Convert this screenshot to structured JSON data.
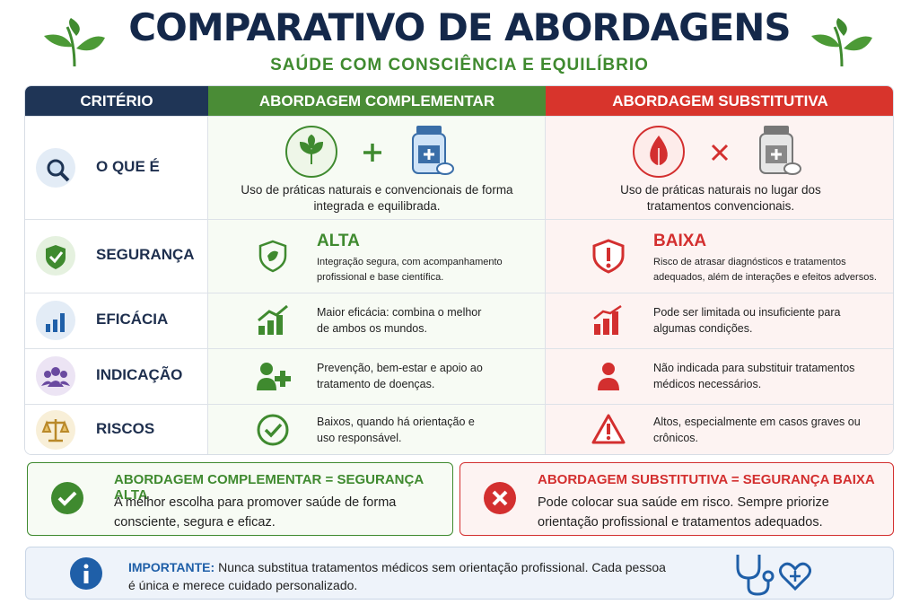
{
  "header": {
    "title": "COMPARATIVO DE ABORDAGENS",
    "subtitle": "SAÚDE COM CONSCIÊNCIA E EQUILÍBRIO"
  },
  "table": {
    "headers": [
      "CRITÉRIO",
      "ABORDAGEM COMPLEMENTAR",
      "ABORDAGEM SUBSTITUTIVA"
    ],
    "rows": [
      {
        "criterion": "O QUE É",
        "complementar": {
          "text": "Uso de práticas naturais e convencionais de forma integrada e equilibrada."
        },
        "substitutiva": {
          "text": "Uso de práticas naturais no lugar dos tratamentos convencionais."
        }
      },
      {
        "criterion": "SEGURANÇA",
        "complementar": {
          "level": "ALTA",
          "text": "Integração segura, com acompanhamento profissional e base científica."
        },
        "substitutiva": {
          "level": "BAIXA",
          "text": "Risco de atrasar diagnósticos e tratamentos adequados, além de interações e efeitos adversos."
        }
      },
      {
        "criterion": "EFICÁCIA",
        "complementar": {
          "text": "Maior eficácia: combina o melhor de ambos os mundos."
        },
        "substitutiva": {
          "text": "Pode ser limitada ou insuficiente para algumas condições."
        }
      },
      {
        "criterion": "INDICAÇÃO",
        "complementar": {
          "text": "Prevenção, bem-estar e apoio ao tratamento de doenças."
        },
        "substitutiva": {
          "text": "Não indicada para substituir tratamentos médicos necessários."
        }
      },
      {
        "criterion": "RISCOS",
        "complementar": {
          "text": "Baixos, quando há orientação e uso responsável."
        },
        "substitutiva": {
          "text": "Altos, especialmente em casos graves ou crônicos."
        }
      }
    ]
  },
  "summary": [
    {
      "title": "ABORDAGEM COMPLEMENTAR = SEGURANÇA ALTA",
      "text": "A melhor escolha para promover saúde de forma consciente, segura e eficaz."
    },
    {
      "title": "ABORDAGEM SUBSTITUTIVA = SEGURANÇA BAIXA",
      "text": "Pode colocar sua saúde em risco. Sempre priorize orientação profissional e tratamentos adequados."
    }
  ],
  "note": {
    "label": "IMPORTANTE:",
    "text": "Nunca substitua tratamentos médicos sem orientação profissional. Cada pessoa é única e merece cuidado personalizado."
  }
}
